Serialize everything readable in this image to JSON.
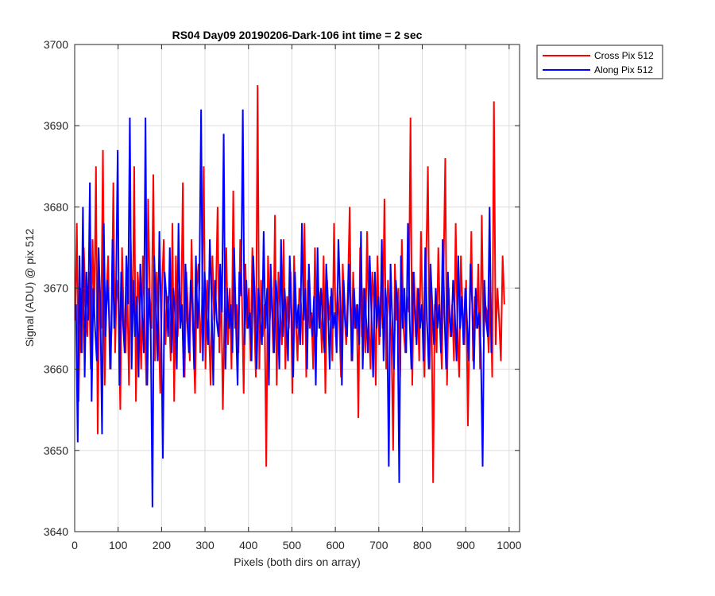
{
  "chart_data": {
    "type": "line",
    "title": "RS04 Day09 20190206-Dark-106 int time = 2 sec",
    "xlabel": "Pixels (both dirs on array)",
    "ylabel": "Signal (ADU) @ pix 512",
    "xlim": [
      0,
      1024
    ],
    "ylim": [
      3640,
      3700
    ],
    "xticks": [
      0,
      100,
      200,
      300,
      400,
      500,
      600,
      700,
      800,
      900,
      1000
    ],
    "yticks": [
      3640,
      3650,
      3660,
      3670,
      3680,
      3690,
      3700
    ],
    "grid": true,
    "legend_position": "outside-top-right",
    "series": [
      {
        "name": "Cross Pix 512",
        "color": "#ff0000",
        "x_start": 1,
        "x_step": 4,
        "values": [
          3666,
          3678,
          3656,
          3670,
          3662,
          3675,
          3668,
          3664,
          3672,
          3660,
          3676,
          3667,
          3685,
          3652,
          3671,
          3665,
          3687,
          3658,
          3669,
          3674,
          3660,
          3665,
          3683,
          3662,
          3671,
          3668,
          3655,
          3675,
          3666,
          3662,
          3670,
          3658,
          3676,
          3664,
          3685,
          3656,
          3672,
          3668,
          3660,
          3674,
          3666,
          3658,
          3681,
          3669,
          3665,
          3684,
          3661,
          3672,
          3666,
          3657,
          3670,
          3676,
          3663,
          3669,
          3668,
          3661,
          3678,
          3656,
          3674,
          3664,
          3670,
          3666,
          3683,
          3659,
          3672,
          3667,
          3661,
          3676,
          3665,
          3657,
          3670,
          3673,
          3662,
          3668,
          3685,
          3660,
          3671,
          3665,
          3658,
          3674,
          3666,
          3669,
          3680,
          3662,
          3671,
          3655,
          3667,
          3675,
          3663,
          3670,
          3660,
          3682,
          3665,
          3668,
          3662,
          3676,
          3669,
          3657,
          3673,
          3665,
          3670,
          3661,
          3675,
          3667,
          3659,
          3695,
          3660,
          3671,
          3664,
          3668,
          3648,
          3674,
          3666,
          3670,
          3662,
          3679,
          3658,
          3672,
          3667,
          3663,
          3676,
          3660,
          3669,
          3665,
          3672,
          3657,
          3674,
          3666,
          3661,
          3670,
          3668,
          3663,
          3678,
          3659,
          3671,
          3665,
          3667,
          3660,
          3675,
          3664,
          3670,
          3668,
          3662,
          3674,
          3657,
          3671,
          3666,
          3669,
          3661,
          3678,
          3664,
          3670,
          3666,
          3659,
          3673,
          3667,
          3663,
          3670,
          3680,
          3661,
          3672,
          3665,
          3668,
          3654,
          3675,
          3664,
          3670,
          3662,
          3677,
          3666,
          3660,
          3672,
          3668,
          3658,
          3674,
          3663,
          3670,
          3665,
          3681,
          3660,
          3671,
          3667,
          3664,
          3650,
          3673,
          3666,
          3670,
          3659,
          3676,
          3665,
          3662,
          3669,
          3667,
          3691,
          3658,
          3672,
          3664,
          3670,
          3661,
          3677,
          3666,
          3659,
          3673,
          3685,
          3660,
          3670,
          3646,
          3668,
          3662,
          3675,
          3666,
          3660,
          3672,
          3686,
          3658,
          3670,
          3664,
          3668,
          3661,
          3678,
          3665,
          3659,
          3674,
          3667,
          3663,
          3671,
          3653,
          3666,
          3677,
          3661,
          3669,
          3665,
          3673,
          3660,
          3679,
          3664,
          3668,
          3667,
          3662,
          3671,
          3659,
          3693,
          3663,
          3670,
          3666,
          3661,
          3674,
          3668
        ]
      },
      {
        "name": "Along Pix 512",
        "color": "#0000ff",
        "x_start": 3,
        "x_step": 4,
        "values": [
          3668,
          3651,
          3674,
          3662,
          3680,
          3659,
          3672,
          3666,
          3683,
          3656,
          3670,
          3665,
          3661,
          3675,
          3668,
          3652,
          3678,
          3664,
          3671,
          3667,
          3660,
          3676,
          3665,
          3669,
          3687,
          3658,
          3672,
          3666,
          3662,
          3674,
          3668,
          3691,
          3660,
          3671,
          3664,
          3669,
          3659,
          3673,
          3667,
          3662,
          3691,
          3658,
          3670,
          3665,
          3643,
          3674,
          3668,
          3661,
          3677,
          3666,
          3649,
          3672,
          3669,
          3664,
          3675,
          3662,
          3670,
          3667,
          3660,
          3678,
          3665,
          3668,
          3659,
          3673,
          3666,
          3662,
          3671,
          3668,
          3660,
          3674,
          3665,
          3670,
          3692,
          3661,
          3672,
          3667,
          3663,
          3676,
          3669,
          3658,
          3671,
          3666,
          3664,
          3673,
          3667,
          3689,
          3660,
          3670,
          3665,
          3668,
          3662,
          3675,
          3666,
          3658,
          3672,
          3669,
          3692,
          3663,
          3671,
          3665,
          3667,
          3661,
          3674,
          3668,
          3660,
          3670,
          3666,
          3663,
          3677,
          3665,
          3670,
          3658,
          3673,
          3667,
          3662,
          3671,
          3668,
          3660,
          3676,
          3664,
          3670,
          3666,
          3661,
          3674,
          3667,
          3659,
          3672,
          3665,
          3668,
          3663,
          3678,
          3666,
          3670,
          3660,
          3673,
          3667,
          3664,
          3669,
          3658,
          3675,
          3665,
          3670,
          3666,
          3662,
          3673,
          3668,
          3660,
          3670,
          3665,
          3667,
          3662,
          3676,
          3669,
          3658,
          3671,
          3666,
          3664,
          3673,
          3667,
          3661,
          3670,
          3665,
          3668,
          3663,
          3677,
          3660,
          3670,
          3666,
          3662,
          3674,
          3667,
          3659,
          3672,
          3665,
          3669,
          3664,
          3676,
          3661,
          3670,
          3667,
          3648,
          3673,
          3666,
          3660,
          3671,
          3668,
          3646,
          3674,
          3665,
          3670,
          3662,
          3678,
          3666,
          3660,
          3672,
          3667,
          3663,
          3670,
          3665,
          3668,
          3661,
          3675,
          3666,
          3660,
          3673,
          3668,
          3663,
          3670,
          3665,
          3668,
          3662,
          3676,
          3667,
          3660,
          3672,
          3666,
          3664,
          3671,
          3667,
          3661,
          3674,
          3665,
          3669,
          3663,
          3670,
          3666,
          3661,
          3673,
          3668,
          3660,
          3670,
          3665,
          3667,
          3662,
          3648,
          3671,
          3666,
          3664,
          3680,
          3662
        ]
      }
    ]
  }
}
